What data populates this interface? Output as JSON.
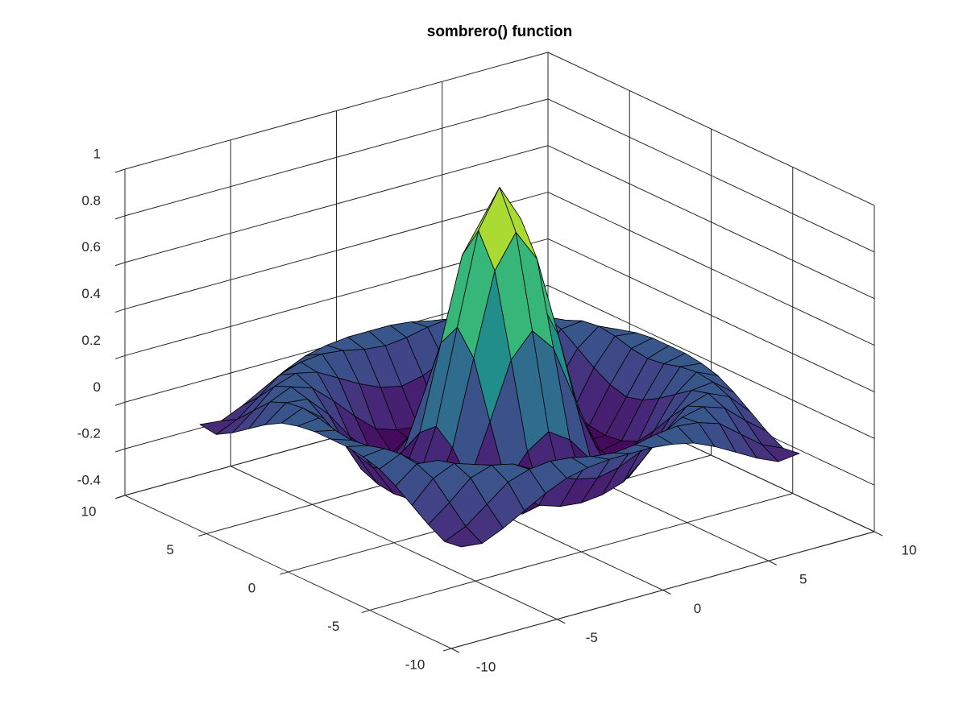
{
  "chart_data": {
    "type": "surface",
    "title": "sombrero() function",
    "x": [
      -8,
      -7,
      -6,
      -5,
      -4,
      -3,
      -2,
      -1,
      0,
      1,
      2,
      3,
      4,
      5,
      6,
      7,
      8
    ],
    "y": [
      -8,
      -7,
      -6,
      -5,
      -4,
      -3,
      -2,
      -1,
      0,
      1,
      2,
      3,
      4,
      5,
      6,
      7,
      8
    ],
    "z": [
      [
        -0.08,
        -0.09,
        -0.05,
        0,
        0.05,
        0.09,
        0.11,
        0.12,
        0.12,
        0.12,
        0.11,
        0.09,
        0.05,
        0,
        -0.05,
        -0.09,
        -0.08
      ],
      [
        -0.09,
        -0.05,
        0.02,
        0.09,
        0.12,
        0.13,
        0.12,
        0.1,
        0.09,
        0.1,
        0.12,
        0.13,
        0.12,
        0.09,
        0.02,
        -0.05,
        -0.09
      ],
      [
        -0.05,
        0.02,
        0.1,
        0.13,
        0.11,
        0.06,
        0.01,
        -0.03,
        -0.05,
        -0.03,
        0.01,
        0.06,
        0.11,
        0.13,
        0.1,
        0.02,
        -0.05
      ],
      [
        0,
        0.09,
        0.13,
        0.1,
        0.02,
        -0.07,
        -0.15,
        -0.18,
        -0.19,
        -0.18,
        -0.15,
        -0.07,
        0.02,
        0.1,
        0.13,
        0.09,
        0
      ],
      [
        0.05,
        0.12,
        0.11,
        0.02,
        -0.1,
        -0.19,
        -0.22,
        -0.2,
        -0.19,
        -0.2,
        -0.22,
        -0.19,
        -0.1,
        0.02,
        0.11,
        0.12,
        0.05
      ],
      [
        0.09,
        0.13,
        0.06,
        -0.07,
        -0.19,
        -0.21,
        -0.12,
        -0.01,
        0.05,
        -0.01,
        -0.12,
        -0.21,
        -0.19,
        -0.07,
        0.06,
        0.13,
        0.09
      ],
      [
        0.11,
        0.12,
        0.01,
        -0.15,
        -0.22,
        -0.12,
        0.11,
        0.35,
        0.45,
        0.35,
        0.11,
        -0.12,
        -0.22,
        -0.15,
        0.01,
        0.12,
        0.11
      ],
      [
        0.12,
        0.1,
        -0.03,
        -0.18,
        -0.2,
        -0.01,
        0.35,
        0.7,
        0.84,
        0.7,
        0.35,
        -0.01,
        -0.2,
        -0.18,
        -0.03,
        0.1,
        0.12
      ],
      [
        0.12,
        0.09,
        -0.05,
        -0.19,
        -0.19,
        0.05,
        0.45,
        0.84,
        1,
        0.84,
        0.45,
        0.05,
        -0.19,
        -0.19,
        -0.05,
        0.09,
        0.12
      ],
      [
        0.12,
        0.1,
        -0.03,
        -0.18,
        -0.2,
        -0.01,
        0.35,
        0.7,
        0.84,
        0.7,
        0.35,
        -0.01,
        -0.2,
        -0.18,
        -0.03,
        0.1,
        0.12
      ],
      [
        0.11,
        0.12,
        0.01,
        -0.15,
        -0.22,
        -0.12,
        0.11,
        0.35,
        0.45,
        0.35,
        0.11,
        -0.12,
        -0.22,
        -0.15,
        0.01,
        0.12,
        0.11
      ],
      [
        0.09,
        0.13,
        0.06,
        -0.07,
        -0.19,
        -0.21,
        -0.12,
        -0.01,
        0.05,
        -0.01,
        -0.12,
        -0.21,
        -0.19,
        -0.07,
        0.06,
        0.13,
        0.09
      ],
      [
        0.05,
        0.12,
        0.11,
        0.02,
        -0.1,
        -0.19,
        -0.22,
        -0.2,
        -0.19,
        -0.2,
        -0.22,
        -0.19,
        -0.1,
        0.02,
        0.11,
        0.12,
        0.05
      ],
      [
        0,
        0.09,
        0.13,
        0.1,
        0.02,
        -0.07,
        -0.15,
        -0.18,
        -0.19,
        -0.18,
        -0.15,
        -0.07,
        0.02,
        0.1,
        0.13,
        0.09,
        0
      ],
      [
        -0.05,
        0.02,
        0.1,
        0.13,
        0.11,
        0.06,
        0.01,
        -0.03,
        -0.05,
        -0.03,
        0.01,
        0.06,
        0.11,
        0.13,
        0.1,
        0.02,
        -0.05
      ],
      [
        -0.09,
        -0.05,
        0.02,
        0.09,
        0.12,
        0.13,
        0.12,
        0.1,
        0.09,
        0.1,
        0.12,
        0.13,
        0.12,
        0.09,
        0.02,
        -0.05,
        -0.09
      ],
      [
        -0.08,
        -0.09,
        -0.05,
        0,
        0.05,
        0.09,
        0.11,
        0.12,
        0.12,
        0.12,
        0.11,
        0.09,
        0.05,
        0,
        -0.05,
        -0.09,
        -0.08
      ]
    ],
    "xlim": [
      -10,
      10
    ],
    "ylim": [
      -10,
      10
    ],
    "zlim": [
      -0.4,
      1
    ],
    "xticks": [
      -10,
      -5,
      0,
      5,
      10
    ],
    "yticks": [
      -10,
      -5,
      0,
      5,
      10
    ],
    "zticks": [
      -0.4,
      -0.2,
      0,
      0.2,
      0.4,
      0.6,
      0.8,
      1
    ],
    "colormap": "viridis",
    "grid": true
  }
}
